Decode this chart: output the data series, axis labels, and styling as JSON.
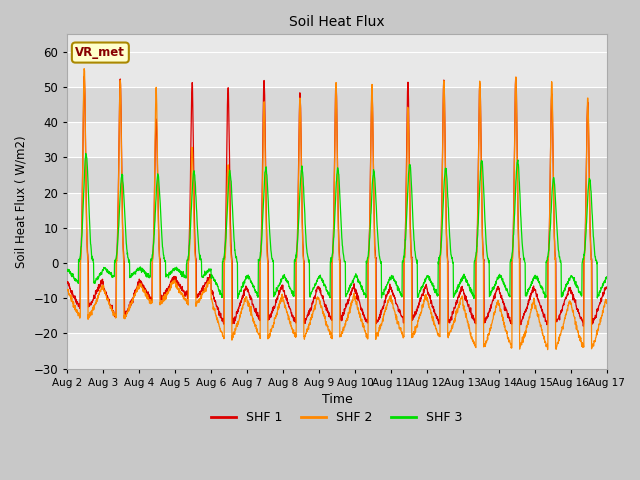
{
  "title": "Soil Heat Flux",
  "ylabel": "Soil Heat Flux ( W/m2)",
  "xlabel": "Time",
  "ylim": [
    -30,
    65
  ],
  "yticks": [
    -30,
    -20,
    -10,
    0,
    10,
    20,
    30,
    40,
    50,
    60
  ],
  "line_colors": {
    "SHF 1": "#dd0000",
    "SHF 2": "#ff8800",
    "SHF 3": "#00dd00"
  },
  "annotation_text": "VR_met",
  "annotation_box_color": "#ffffcc",
  "annotation_box_edge": "#aa8800",
  "x_tick_labels": [
    "Aug 2",
    "Aug 3",
    "Aug 4",
    "Aug 5",
    "Aug 6",
    "Aug 7",
    "Aug 8",
    "Aug 9",
    "Aug 10",
    "Aug 11",
    "Aug 12",
    "Aug 13",
    "Aug 14",
    "Aug 15",
    "Aug 16",
    "Aug 17"
  ],
  "num_days": 15,
  "points_per_day": 144,
  "day_peaks_shf1": [
    53,
    52,
    41,
    51,
    50,
    52,
    48,
    51,
    48,
    51,
    52,
    51,
    53,
    48,
    46
  ],
  "day_peaks_shf2": [
    56,
    52,
    50,
    33,
    28,
    46,
    47,
    51,
    50,
    44,
    52,
    52,
    53,
    52,
    47
  ],
  "day_peaks_shf3": [
    31,
    25,
    25,
    26,
    26,
    27,
    27,
    27,
    26,
    28,
    27,
    29,
    29,
    24,
    24
  ],
  "day_troughs_shf1": [
    -13,
    -16,
    -11,
    -10,
    -18,
    -17,
    -18,
    -17,
    -18,
    -17,
    -18,
    -18,
    -18,
    -18,
    -18
  ],
  "day_troughs_shf2": [
    -16,
    -16,
    -12,
    -12,
    -22,
    -22,
    -22,
    -22,
    -22,
    -22,
    -22,
    -25,
    -25,
    -25,
    -25
  ],
  "day_troughs_shf3": [
    -7,
    -5,
    -5,
    -5,
    -12,
    -12,
    -12,
    -12,
    -12,
    -12,
    -12,
    -12,
    -12,
    -12,
    -12
  ],
  "plot_bg_light": "#e8e8e8",
  "plot_bg_dark": "#d8d8d8"
}
